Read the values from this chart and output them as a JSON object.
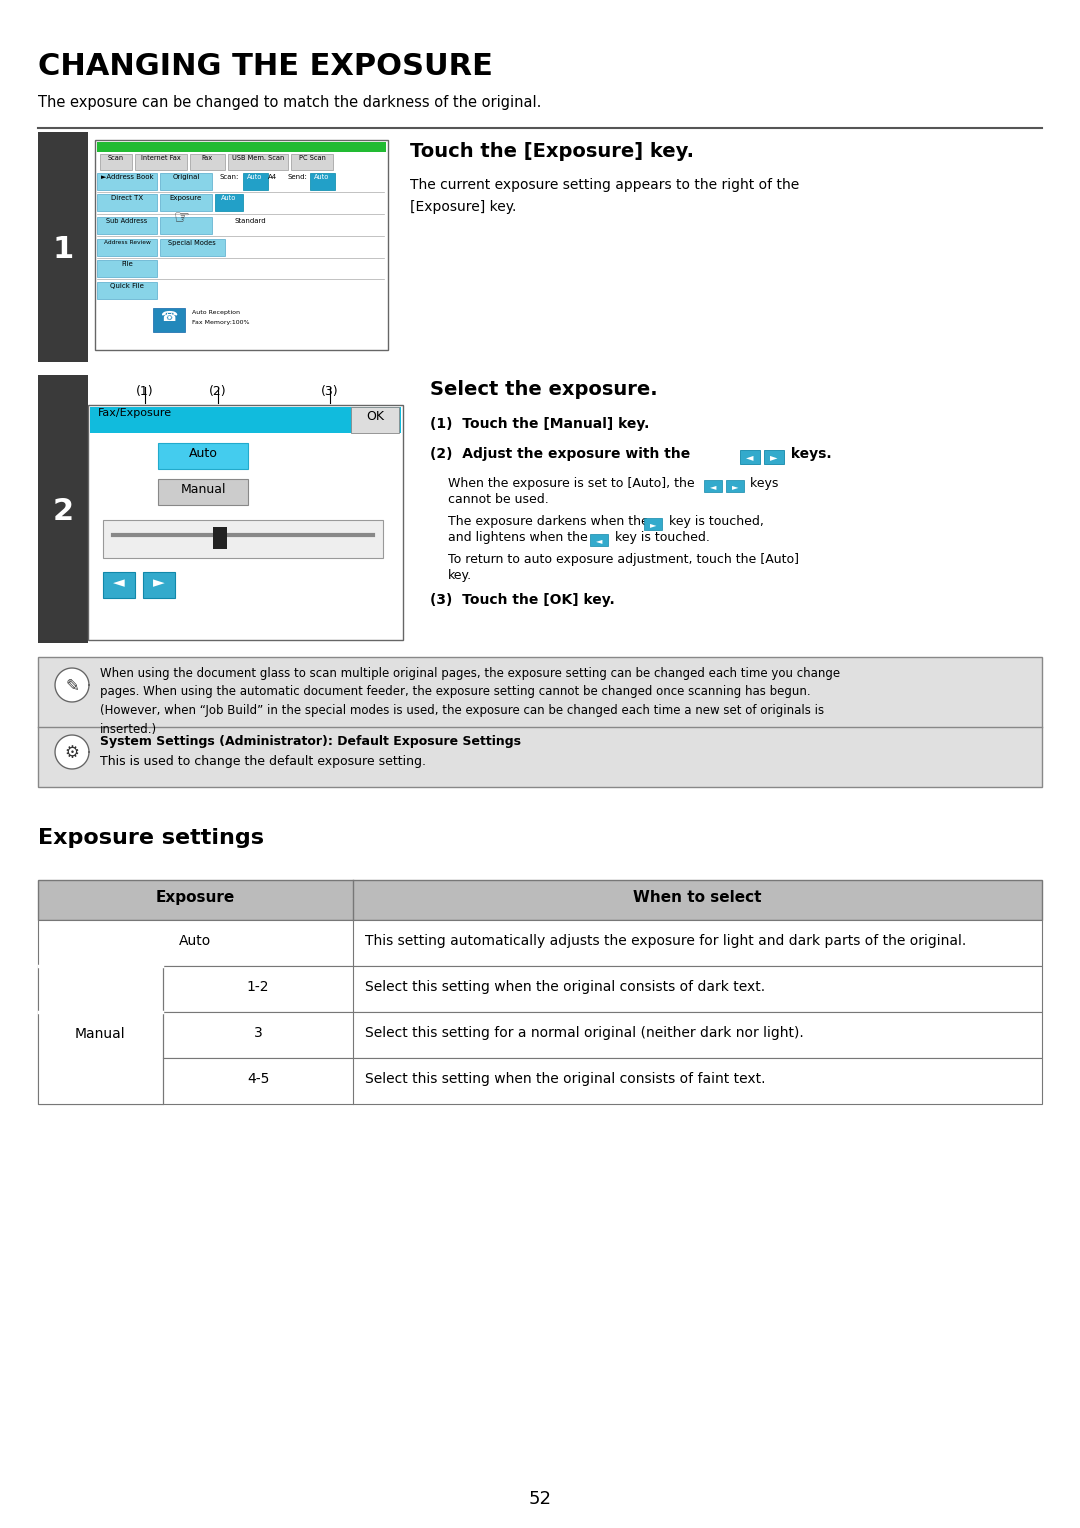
{
  "title": "CHANGING THE EXPOSURE",
  "subtitle": "The exposure can be changed to match the darkness of the original.",
  "step1_heading": "Touch the [Exposure] key.",
  "step1_desc": "The current exposure setting appears to the right of the\n[Exposure] key.",
  "step2_heading": "Select the exposure.",
  "step2_sub1": "(1)  Touch the [Manual] key.",
  "step2_sub3": "(3)  Touch the [OK] key.",
  "note_text": "When using the document glass to scan multiple original pages, the exposure setting can be changed each time you change\npages. When using the automatic document feeder, the exposure setting cannot be changed once scanning has begun.\n(However, when “Job Build” in the special modes is used, the exposure can be changed each time a new set of originals is\ninserted.)",
  "sys_settings_bold": "System Settings (Administrator): Default Exposure Settings",
  "sys_settings_normal": "This is used to change the default exposure setting.",
  "exposure_settings_title": "Exposure settings",
  "table_header1": "Exposure",
  "table_header2": "When to select",
  "table_rows": [
    {
      "col1a": "Auto",
      "col1b": "",
      "col2": "This setting automatically adjusts the exposure for light and dark parts of the original."
    },
    {
      "col1a": "Manual",
      "col1b": "1-2",
      "col2": "Select this setting when the original consists of dark text."
    },
    {
      "col1a": "",
      "col1b": "3",
      "col2": "Select this setting for a normal original (neither dark nor light)."
    },
    {
      "col1a": "",
      "col1b": "4-5",
      "col2": "Select this setting when the original consists of faint text."
    }
  ],
  "page_number": "52",
  "bg_color": "#ffffff",
  "step_bg": "#3a3a3a",
  "step_number_color": "#ffffff",
  "button_blue": "#88d4e8",
  "button_blue_dark": "#22a0c8",
  "button_cyan_bright": "#44ccee",
  "note_bg": "#e0e0e0",
  "table_header_bg": "#bbbbbb",
  "table_border": "#777777"
}
